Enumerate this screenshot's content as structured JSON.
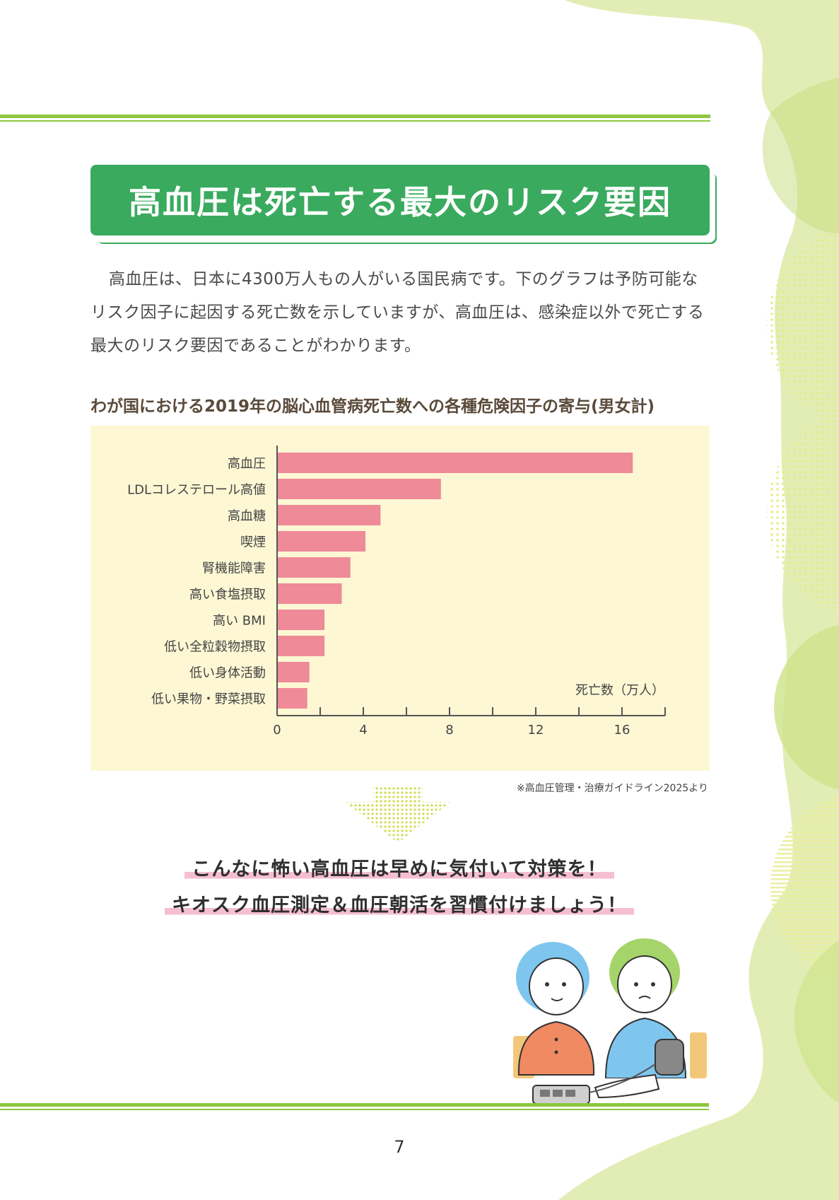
{
  "header": {
    "title": "高血圧は死亡する最大のリスク要因"
  },
  "intro": {
    "text": "高血圧は、日本に4300万人もの人がいる国民病です。下のグラフは予防可能なリスク因子に起因する死亡数を示していますが、高血圧は、感染症以外で死亡する最大のリスク要因であることがわかります。"
  },
  "chart_title": "わが国における2019年の脳心血管病死亡数への各種危険因子の寄与(男女計)",
  "chart_data": {
    "type": "bar",
    "orientation": "horizontal",
    "title": "わが国における2019年の脳心血管病死亡数への各種危険因子の寄与(男女計)",
    "xlabel": "死亡数（万人）",
    "ylabel": "",
    "categories": [
      "高血圧",
      "LDLコレステロール高値",
      "高血糖",
      "喫煙",
      "腎機能障害",
      "高い食塩摂取",
      "高い BMI",
      "低い全粒穀物摂取",
      "低い身体活動",
      "低い果物・野菜摂取"
    ],
    "values": [
      16.5,
      7.6,
      4.8,
      4.1,
      3.4,
      3.0,
      2.2,
      2.2,
      1.5,
      1.4
    ],
    "xlim": [
      0,
      18
    ],
    "xticks": [
      0,
      4,
      8,
      12,
      16
    ],
    "xtick_labels": [
      "0",
      "4",
      "8",
      "12",
      "16"
    ],
    "grid": false,
    "bar_color": "#ef8a98",
    "background_color": "#fdf7d4"
  },
  "source_note": "※高血圧管理・治療ガイドライン2025より",
  "callout": {
    "line1": "こんなに怖い高血圧は早めに気付いて対策を！",
    "line2": "キオスク血圧測定＆血圧朝活を習慣付けましょう！"
  },
  "page_number": "7",
  "colors": {
    "accent_green": "#3aaa5e",
    "rule_green": "#8dc63f",
    "highlight_pink": "#f6bfd0",
    "bar_pink": "#ef8a98"
  }
}
